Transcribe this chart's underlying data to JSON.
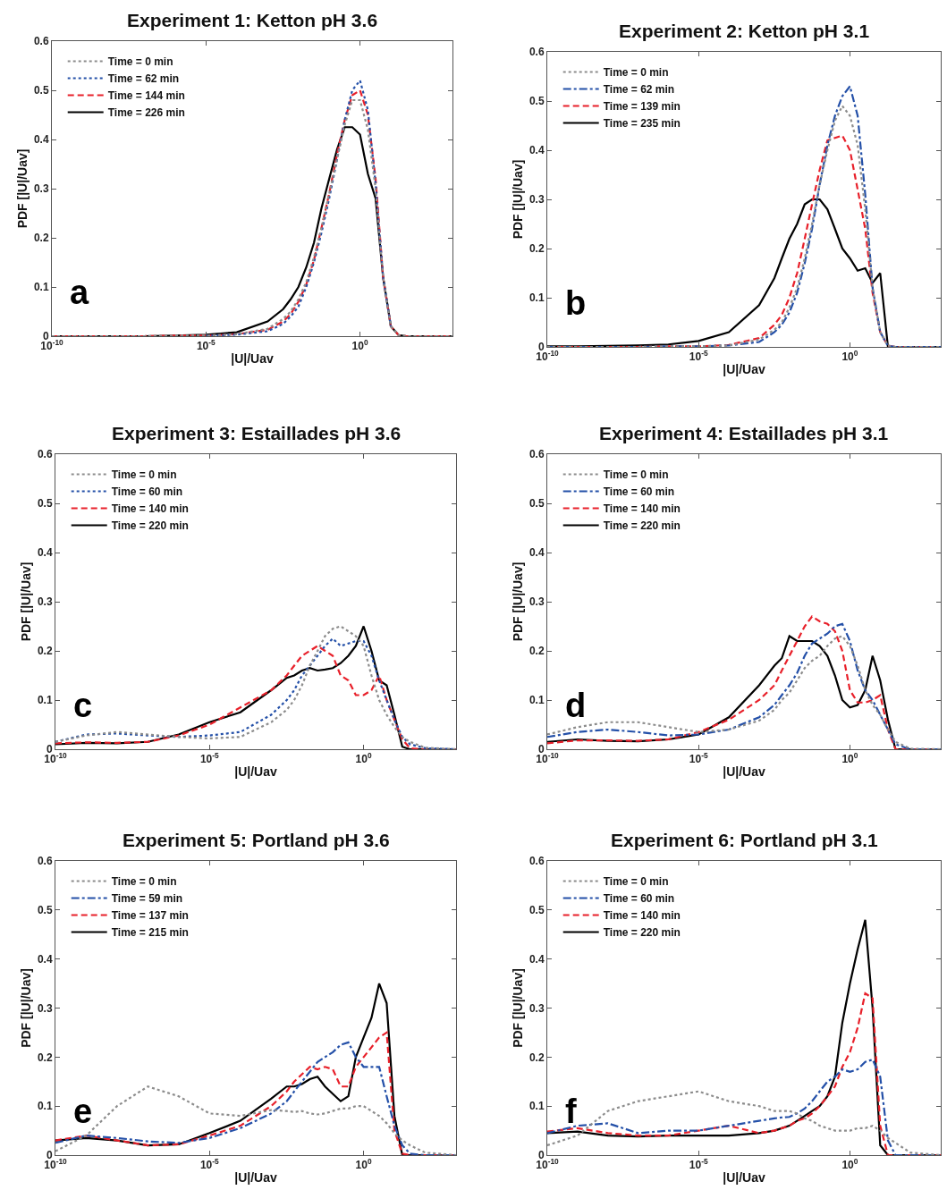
{
  "chart_data": [
    {
      "type": "line",
      "title": "Experiment 1: Ketton pH 3.6",
      "xlabel": "|U|/Uav",
      "ylabel": "PDF [|U|/Uav]",
      "log": "x",
      "legend": "top left",
      "annotations": [
        "a"
      ],
      "xlim": [
        1e-10,
        1000
      ],
      "xticks": [
        {
          "value": 1e-10,
          "label": "10$^{-10}$"
        },
        {
          "value": 1e-05,
          "label": "10$^{-5}$"
        },
        {
          "value": 1,
          "label": "10$^{0}$"
        }
      ],
      "ylim": [
        0,
        0.6
      ],
      "yticks": [
        0,
        0.1,
        0.2,
        0.3,
        0.4,
        0.5,
        0.6
      ],
      "x": [
        1e-10,
        1e-09,
        1e-08,
        1e-07,
        1e-06,
        1e-05,
        0.0001,
        0.001,
        0.0032,
        0.0056,
        0.01,
        0.018,
        0.032,
        0.056,
        0.1,
        0.18,
        0.32,
        0.56,
        1,
        1.8,
        3.2,
        5.6,
        10,
        18,
        32,
        100,
        1000
      ],
      "series": [
        {
          "name": "Time = 0 min",
          "color": "#8c8c8c",
          "line_style": "dotted",
          "values": [
            0,
            0,
            0,
            0,
            0.001,
            0.001,
            0.004,
            0.015,
            0.035,
            0.05,
            0.075,
            0.11,
            0.16,
            0.22,
            0.29,
            0.36,
            0.43,
            0.48,
            0.48,
            0.42,
            0.3,
            0.12,
            0.02,
            0.002,
            0,
            0,
            0
          ]
        },
        {
          "name": "Time = 62 min",
          "color": "#2450a8",
          "line_style": "dotted",
          "values": [
            null,
            null,
            null,
            null,
            null,
            0.001,
            0.003,
            0.01,
            0.025,
            0.04,
            0.06,
            0.1,
            0.15,
            0.21,
            0.28,
            0.36,
            0.44,
            0.5,
            0.52,
            0.46,
            0.31,
            0.12,
            0.02,
            null,
            null,
            null,
            null
          ]
        },
        {
          "name": "Time = 144 min",
          "color": "#e8202a",
          "line_style": "dashed",
          "values": [
            0,
            0,
            0,
            0,
            0.001,
            0.001,
            0.004,
            0.013,
            0.03,
            0.045,
            0.07,
            0.105,
            0.155,
            0.22,
            0.29,
            0.37,
            0.44,
            0.49,
            0.5,
            0.45,
            0.32,
            0.12,
            0.02,
            0.002,
            0,
            0,
            0
          ]
        },
        {
          "name": "Time = 226 min",
          "color": "#000000",
          "line_style": "solid",
          "values": [
            0,
            0,
            0,
            0,
            0.001,
            0.003,
            0.008,
            0.03,
            0.055,
            0.075,
            0.1,
            0.14,
            0.19,
            0.26,
            0.32,
            0.38,
            0.425,
            0.425,
            0.41,
            0.33,
            0.28,
            0.12,
            0.02,
            0.002,
            0,
            0,
            0
          ]
        }
      ]
    },
    {
      "type": "line",
      "title": "Experiment 2: Ketton pH 3.1",
      "xlabel": "|U|/Uav",
      "ylabel": "PDF [|U|/Uav]",
      "log": "x",
      "legend": "top left",
      "annotations": [
        "b"
      ],
      "xlim": [
        1e-10,
        1000
      ],
      "xticks": [
        {
          "value": 1e-10,
          "label": "10$^{-10}$"
        },
        {
          "value": 1e-05,
          "label": "10$^{-5}$"
        },
        {
          "value": 1,
          "label": "10$^{0}$"
        }
      ],
      "ylim": [
        0,
        0.6
      ],
      "yticks": [
        0,
        0.1,
        0.2,
        0.3,
        0.4,
        0.5,
        0.6
      ],
      "x": [
        1e-10,
        1e-09,
        1e-08,
        1e-07,
        1e-06,
        1e-05,
        0.0001,
        0.001,
        0.0032,
        0.0056,
        0.01,
        0.018,
        0.032,
        0.056,
        0.1,
        0.18,
        0.32,
        0.56,
        1,
        1.8,
        3.2,
        5.6,
        10,
        18,
        32,
        100,
        1000
      ],
      "series": [
        {
          "name": "Time = 0 min",
          "color": "#8c8c8c",
          "line_style": "dotted",
          "values": [
            0,
            0,
            0,
            0,
            0.001,
            0.001,
            0.003,
            0.015,
            0.035,
            0.05,
            0.08,
            0.12,
            0.18,
            0.25,
            0.33,
            0.4,
            0.46,
            0.49,
            0.47,
            0.41,
            0.28,
            0.12,
            0.03,
            0.003,
            0,
            0,
            0
          ]
        },
        {
          "name": "Time = 62 min",
          "color": "#2450a8",
          "line_style": "dashdot",
          "values": [
            0,
            0,
            0,
            0,
            0.001,
            0.001,
            0.003,
            0.01,
            0.03,
            0.045,
            0.07,
            0.11,
            0.17,
            0.24,
            0.33,
            0.41,
            0.47,
            0.51,
            0.53,
            0.47,
            0.31,
            0.12,
            0.03,
            0.002,
            0,
            0,
            0
          ]
        },
        {
          "name": "Time = 139 min",
          "color": "#e8202a",
          "line_style": "dashed",
          "values": [
            0,
            0,
            0,
            0,
            0.001,
            0.001,
            0.004,
            0.018,
            0.045,
            0.065,
            0.1,
            0.15,
            0.22,
            0.29,
            0.36,
            0.42,
            0.425,
            0.43,
            0.4,
            0.32,
            0.24,
            0.11,
            0.03,
            0.002,
            0,
            0,
            0
          ]
        },
        {
          "name": "Time = 235 min",
          "color": "#000000",
          "line_style": "solid",
          "values": [
            0.001,
            0.001,
            0.002,
            0.003,
            0.005,
            0.012,
            0.03,
            0.085,
            0.14,
            0.18,
            0.22,
            0.25,
            0.29,
            0.3,
            0.3,
            0.28,
            0.24,
            0.2,
            0.18,
            0.155,
            0.16,
            0.13,
            0.15,
            0,
            0,
            0,
            0
          ]
        }
      ]
    },
    {
      "type": "line",
      "title": "Experiment 3: Estaillades pH 3.6",
      "xlabel": "|U|/Uav",
      "ylabel": "PDF [|U|/Uav]",
      "log": "x",
      "legend": "top left",
      "annotations": [
        "c"
      ],
      "xlim": [
        1e-10,
        1000
      ],
      "xticks": [
        {
          "value": 1e-10,
          "label": "10$^{-10}$"
        },
        {
          "value": 1e-05,
          "label": "10$^{-5}$"
        },
        {
          "value": 1,
          "label": "10$^{0}$"
        }
      ],
      "ylim": [
        0,
        0.6
      ],
      "yticks": [
        0,
        0.1,
        0.2,
        0.3,
        0.4,
        0.5,
        0.6
      ],
      "x": [
        1e-10,
        1e-09,
        1e-08,
        1e-07,
        1e-06,
        1e-05,
        0.0001,
        0.001,
        0.0032,
        0.0056,
        0.01,
        0.018,
        0.032,
        0.056,
        0.1,
        0.18,
        0.32,
        0.56,
        1,
        1.8,
        3.2,
        5.6,
        10,
        18,
        32,
        100,
        1000
      ],
      "series": [
        {
          "name": "Time = 0 min",
          "color": "#8c8c8c",
          "line_style": "dotted",
          "values": [
            0.015,
            0.028,
            0.035,
            0.03,
            0.025,
            0.022,
            0.025,
            0.055,
            0.08,
            0.1,
            0.13,
            0.17,
            0.2,
            0.23,
            0.245,
            0.25,
            0.24,
            0.23,
            0.21,
            0.15,
            0.1,
            0.07,
            0.045,
            0.025,
            0.015,
            0.003,
            0
          ]
        },
        {
          "name": "Time = 60 min",
          "color": "#2450a8",
          "line_style": "dotted",
          "values": [
            0.015,
            0.03,
            0.032,
            0.028,
            0.025,
            0.028,
            0.035,
            0.07,
            0.1,
            0.12,
            0.15,
            0.17,
            0.19,
            0.21,
            0.225,
            0.21,
            0.215,
            0.22,
            0.22,
            0.19,
            0.14,
            0.1,
            0.06,
            0.025,
            0.01,
            0.002,
            0
          ]
        },
        {
          "name": "Time = 140 min",
          "color": "#e8202a",
          "line_style": "dashed",
          "values": [
            0.012,
            0.014,
            0.013,
            0.015,
            0.028,
            0.05,
            0.085,
            0.12,
            0.15,
            0.17,
            0.19,
            0.2,
            0.21,
            0.2,
            0.19,
            0.15,
            0.14,
            0.11,
            0.11,
            0.12,
            0.15,
            0.1,
            0.06,
            0.02,
            0.002,
            0,
            0
          ]
        },
        {
          "name": "Time = 220 min",
          "color": "#000000",
          "line_style": "solid",
          "values": [
            0.01,
            0.013,
            0.012,
            0.015,
            0.03,
            0.055,
            0.075,
            0.12,
            0.145,
            0.15,
            0.16,
            0.165,
            0.16,
            0.162,
            0.165,
            0.175,
            0.19,
            0.21,
            0.25,
            0.2,
            0.14,
            0.13,
            0.07,
            0.005,
            0,
            0,
            0
          ]
        }
      ]
    },
    {
      "type": "line",
      "title": "Experiment 4: Estaillades pH 3.1",
      "xlabel": "|U|/Uav",
      "ylabel": "PDF [|U|/Uav]",
      "log": "x",
      "legend": "top left",
      "annotations": [
        "d"
      ],
      "xlim": [
        1e-10,
        1000
      ],
      "xticks": [
        {
          "value": 1e-10,
          "label": "10$^{-10}$"
        },
        {
          "value": 1e-05,
          "label": "10$^{-5}$"
        },
        {
          "value": 1,
          "label": "10$^{0}$"
        }
      ],
      "ylim": [
        0,
        0.6
      ],
      "yticks": [
        0,
        0.1,
        0.2,
        0.3,
        0.4,
        0.5,
        0.6
      ],
      "x": [
        1e-10,
        1e-09,
        1e-08,
        1e-07,
        1e-06,
        1e-05,
        0.0001,
        0.001,
        0.0032,
        0.0056,
        0.01,
        0.018,
        0.032,
        0.056,
        0.1,
        0.18,
        0.32,
        0.56,
        1,
        1.8,
        3.2,
        5.6,
        10,
        18,
        32,
        100,
        1000
      ],
      "series": [
        {
          "name": "Time = 0 min",
          "color": "#8c8c8c",
          "line_style": "dotted",
          "values": [
            0.03,
            0.045,
            0.055,
            0.055,
            0.045,
            0.035,
            0.04,
            0.058,
            0.08,
            0.1,
            0.115,
            0.14,
            0.165,
            0.18,
            0.19,
            0.21,
            0.225,
            0.23,
            0.21,
            0.17,
            0.12,
            0.09,
            0.07,
            0.04,
            0.015,
            0.001,
            0
          ]
        },
        {
          "name": "Time = 60 min",
          "color": "#2450a8",
          "line_style": "dashdot",
          "values": [
            0.025,
            0.035,
            0.04,
            0.035,
            0.028,
            0.03,
            0.04,
            0.065,
            0.09,
            0.11,
            0.13,
            0.155,
            0.19,
            0.215,
            0.225,
            0.235,
            0.25,
            0.255,
            0.22,
            0.16,
            0.12,
            0.1,
            0.07,
            0.04,
            0.01,
            0,
            0
          ]
        },
        {
          "name": "Time = 140 min",
          "color": "#e8202a",
          "line_style": "dashed",
          "values": [
            0.012,
            0.018,
            0.018,
            0.017,
            0.02,
            0.035,
            0.06,
            0.1,
            0.13,
            0.16,
            0.19,
            0.22,
            0.25,
            0.27,
            0.26,
            0.255,
            0.24,
            0.2,
            0.12,
            0.095,
            0.095,
            0.1,
            0.11,
            0.04,
            0,
            0,
            0
          ]
        },
        {
          "name": "Time = 220 min",
          "color": "#000000",
          "line_style": "solid",
          "values": [
            0.015,
            0.02,
            0.017,
            0.016,
            0.02,
            0.03,
            0.065,
            0.13,
            0.17,
            0.185,
            0.23,
            0.22,
            0.22,
            0.22,
            0.21,
            0.19,
            0.15,
            0.1,
            0.085,
            0.09,
            0.12,
            0.19,
            0.14,
            0.06,
            0,
            0,
            0
          ]
        }
      ]
    },
    {
      "type": "line",
      "title": "Experiment 5: Portland pH 3.6",
      "xlabel": "|U|/Uav",
      "ylabel": "PDF [|U|/Uav]",
      "log": "x",
      "legend": "top left",
      "annotations": [
        "e"
      ],
      "xlim": [
        1e-10,
        1000
      ],
      "xticks": [
        {
          "value": 1e-10,
          "label": "10$^{-10}$"
        },
        {
          "value": 1e-05,
          "label": "10$^{-5}$"
        },
        {
          "value": 1,
          "label": "10$^{0}$"
        }
      ],
      "ylim": [
        0,
        0.6
      ],
      "yticks": [
        0,
        0.1,
        0.2,
        0.3,
        0.4,
        0.5,
        0.6
      ],
      "x": [
        1e-10,
        1e-09,
        1e-08,
        1e-07,
        1e-06,
        1e-05,
        0.0001,
        0.001,
        0.0032,
        0.0056,
        0.01,
        0.018,
        0.032,
        0.056,
        0.1,
        0.18,
        0.32,
        0.56,
        1,
        1.8,
        3.2,
        5.6,
        10,
        18,
        32,
        100,
        1000
      ],
      "series": [
        {
          "name": "Time = 0 min",
          "color": "#8c8c8c",
          "line_style": "dotted",
          "values": [
            0.008,
            0.04,
            0.1,
            0.14,
            0.12,
            0.085,
            0.08,
            0.092,
            0.09,
            0.088,
            0.09,
            0.085,
            0.083,
            0.085,
            0.09,
            0.095,
            0.095,
            0.1,
            0.1,
            0.09,
            0.08,
            0.065,
            0.045,
            0.03,
            0.02,
            0.005,
            0
          ]
        },
        {
          "name": "Time = 59 min",
          "color": "#2450a8",
          "line_style": "dashdot",
          "values": [
            0.025,
            0.04,
            0.035,
            0.028,
            0.025,
            0.035,
            0.055,
            0.085,
            0.11,
            0.13,
            0.15,
            0.17,
            0.19,
            0.2,
            0.21,
            0.225,
            0.23,
            0.2,
            0.18,
            0.18,
            0.18,
            0.12,
            0.06,
            0.02,
            0.003,
            0,
            0
          ]
        },
        {
          "name": "Time = 137 min",
          "color": "#e8202a",
          "line_style": "dashed",
          "values": [
            0.03,
            0.04,
            0.03,
            0.02,
            0.022,
            0.04,
            0.06,
            0.1,
            0.13,
            0.15,
            0.165,
            0.18,
            0.175,
            0.18,
            0.175,
            0.14,
            0.14,
            0.18,
            0.2,
            0.22,
            0.24,
            0.25,
            0.05,
            0.003,
            0,
            0,
            0
          ]
        },
        {
          "name": "Time = 215 min",
          "color": "#000000",
          "line_style": "solid",
          "values": [
            0.03,
            0.035,
            0.03,
            0.02,
            0.022,
            0.045,
            0.07,
            0.115,
            0.14,
            0.14,
            0.145,
            0.155,
            0.16,
            0.14,
            0.125,
            0.11,
            0.12,
            0.2,
            0.24,
            0.28,
            0.35,
            0.31,
            0.08,
            0,
            0,
            0,
            0
          ]
        }
      ]
    },
    {
      "type": "line",
      "title": "Experiment 6: Portland pH 3.1",
      "xlabel": "|U|/Uav",
      "ylabel": "PDF [|U|/Uav]",
      "log": "x",
      "legend": "top left",
      "annotations": [
        "f"
      ],
      "xlim": [
        1e-10,
        1000
      ],
      "xticks": [
        {
          "value": 1e-10,
          "label": "10$^{-10}$"
        },
        {
          "value": 1e-05,
          "label": "10$^{-5}$"
        },
        {
          "value": 1,
          "label": "10$^{0}$"
        }
      ],
      "ylim": [
        0,
        0.6
      ],
      "yticks": [
        0,
        0.1,
        0.2,
        0.3,
        0.4,
        0.5,
        0.6
      ],
      "x": [
        1e-10,
        1e-09,
        1e-08,
        1e-07,
        1e-06,
        1e-05,
        0.0001,
        0.001,
        0.0032,
        0.0056,
        0.01,
        0.018,
        0.032,
        0.056,
        0.1,
        0.18,
        0.32,
        0.56,
        1,
        1.8,
        3.2,
        5.6,
        10,
        18,
        32,
        100,
        1000
      ],
      "series": [
        {
          "name": "Time = 0 min",
          "color": "#8c8c8c",
          "line_style": "dotted",
          "values": [
            0.02,
            0.04,
            0.09,
            0.11,
            0.12,
            0.13,
            0.11,
            0.1,
            0.09,
            0.09,
            0.09,
            0.085,
            0.075,
            0.07,
            0.06,
            0.055,
            0.05,
            0.05,
            0.05,
            0.055,
            0.055,
            0.06,
            0.05,
            0.035,
            0.025,
            0.005,
            0
          ]
        },
        {
          "name": "Time = 60 min",
          "color": "#2450a8",
          "line_style": "dashdot",
          "values": [
            0.045,
            0.06,
            0.065,
            0.045,
            0.05,
            0.05,
            0.06,
            0.07,
            0.075,
            0.077,
            0.078,
            0.085,
            0.095,
            0.11,
            0.13,
            0.15,
            0.16,
            0.175,
            0.17,
            0.175,
            0.19,
            0.195,
            0.16,
            0.03,
            0,
            0,
            0
          ]
        },
        {
          "name": "Time = 140 min",
          "color": "#e8202a",
          "line_style": "dashed",
          "values": [
            0.048,
            0.055,
            0.045,
            0.04,
            0.04,
            0.05,
            0.06,
            0.045,
            0.05,
            0.055,
            0.06,
            0.07,
            0.075,
            0.085,
            0.1,
            0.12,
            0.14,
            0.18,
            0.21,
            0.26,
            0.33,
            0.32,
            0.06,
            0,
            0,
            0,
            0
          ]
        },
        {
          "name": "Time = 220 min",
          "color": "#000000",
          "line_style": "solid",
          "values": [
            0.045,
            0.048,
            0.04,
            0.038,
            0.04,
            0.04,
            0.04,
            0.045,
            0.05,
            0.055,
            0.06,
            0.07,
            0.08,
            0.09,
            0.1,
            0.12,
            0.16,
            0.27,
            0.35,
            0.42,
            0.48,
            0.3,
            0.02,
            0,
            0,
            0,
            0
          ]
        }
      ]
    }
  ]
}
